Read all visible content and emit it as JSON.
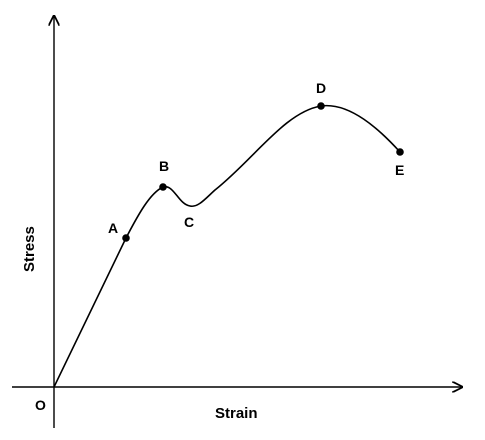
{
  "chart_data": {
    "type": "line",
    "title": "",
    "xlabel": "Strain",
    "ylabel": "Stress",
    "origin_label": "O",
    "grid": false,
    "legend": "none",
    "points": [
      {
        "label": "A"
      },
      {
        "label": "B"
      },
      {
        "label": "C"
      },
      {
        "label": "D"
      },
      {
        "label": "E"
      }
    ]
  },
  "colors": {
    "line": "#000000",
    "background": "#ffffff"
  }
}
